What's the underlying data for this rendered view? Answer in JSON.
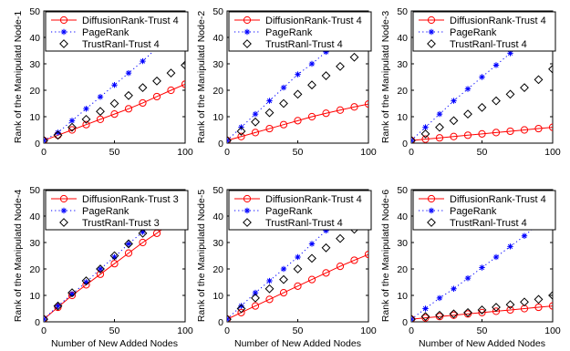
{
  "chart_data": [
    {
      "type": "line",
      "xlabel": "",
      "ylabel": "Rank of the Manipulatd Node-1",
      "xlim": [
        0,
        100
      ],
      "ylim": [
        0,
        50
      ],
      "xticks": [
        0,
        50,
        100
      ],
      "yticks": [
        0,
        10,
        20,
        30,
        40,
        50
      ],
      "legend_position": "top",
      "series": [
        {
          "name": "DiffusionRank-Trust 4",
          "color": "#ff0000",
          "marker": "circle",
          "line": "solid",
          "x": [
            0,
            10,
            20,
            30,
            40,
            50,
            60,
            70,
            80,
            90,
            100
          ],
          "y": [
            1,
            3,
            5,
            7,
            9,
            11,
            13,
            15.2,
            17.6,
            20,
            22.3
          ]
        },
        {
          "name": "PageRank",
          "color": "#0000ff",
          "marker": "star",
          "line": "dotted",
          "x": [
            0,
            10,
            20,
            30,
            40,
            50,
            60,
            70,
            80,
            90,
            100
          ],
          "y": [
            1,
            4,
            8.5,
            13,
            17.5,
            22,
            26.5,
            31,
            36,
            41,
            45
          ]
        },
        {
          "name": "TrustRanl-Trust 4",
          "color": "#000000",
          "marker": "diamond",
          "line": "none",
          "x": [
            0,
            10,
            20,
            30,
            40,
            50,
            60,
            70,
            80,
            90,
            100
          ],
          "y": [
            1,
            3,
            6,
            9,
            12,
            15,
            18,
            21,
            23.5,
            26.5,
            29.5
          ]
        }
      ]
    },
    {
      "type": "line",
      "xlabel": "",
      "ylabel": "Rank of the Manipulatd Node-2",
      "xlim": [
        0,
        100
      ],
      "ylim": [
        0,
        50
      ],
      "xticks": [
        0,
        50,
        100
      ],
      "yticks": [
        0,
        10,
        20,
        30,
        40,
        50
      ],
      "legend_position": "top",
      "series": [
        {
          "name": "DiffusionRank-Trust 4",
          "color": "#ff0000",
          "marker": "circle",
          "line": "solid",
          "x": [
            0,
            10,
            20,
            30,
            40,
            50,
            60,
            70,
            80,
            90,
            100
          ],
          "y": [
            1,
            2.5,
            4,
            5.5,
            7,
            8.5,
            10,
            11.3,
            12.5,
            13.7,
            14.8
          ]
        },
        {
          "name": "PageRank",
          "color": "#0000ff",
          "marker": "star",
          "line": "dotted",
          "x": [
            0,
            10,
            20,
            30,
            40,
            50,
            60,
            70,
            80,
            90,
            100
          ],
          "y": [
            1,
            6,
            11,
            16,
            21,
            26,
            30,
            34.5,
            39,
            43.5,
            48
          ]
        },
        {
          "name": "TrustRanl-Trust 4",
          "color": "#000000",
          "marker": "diamond",
          "line": "none",
          "x": [
            0,
            10,
            20,
            30,
            40,
            50,
            60,
            70,
            80,
            90,
            100
          ],
          "y": [
            1,
            4.5,
            8,
            11.5,
            15,
            18.5,
            22,
            25.5,
            29,
            32.5,
            36.5
          ]
        }
      ]
    },
    {
      "type": "line",
      "xlabel": "",
      "ylabel": "Rank of the Manipulatd Node-3",
      "xlim": [
        0,
        100
      ],
      "ylim": [
        0,
        50
      ],
      "xticks": [
        0,
        50,
        100
      ],
      "yticks": [
        0,
        10,
        20,
        30,
        40,
        50
      ],
      "legend_position": "top",
      "series": [
        {
          "name": "DiffusionRank-Trust 4",
          "color": "#ff0000",
          "marker": "circle",
          "line": "solid",
          "x": [
            0,
            10,
            20,
            30,
            40,
            50,
            60,
            70,
            80,
            90,
            100
          ],
          "y": [
            1,
            1.5,
            2,
            2.5,
            3,
            3.5,
            4,
            4.5,
            5,
            5.5,
            6
          ]
        },
        {
          "name": "PageRank",
          "color": "#0000ff",
          "marker": "star",
          "line": "dotted",
          "x": [
            0,
            10,
            20,
            30,
            40,
            50,
            60,
            70,
            80,
            90,
            100
          ],
          "y": [
            1,
            6,
            11,
            16,
            20.5,
            25,
            29.5,
            34,
            39,
            44,
            48.5
          ]
        },
        {
          "name": "TrustRanl-Trust 4",
          "color": "#000000",
          "marker": "diamond",
          "line": "none",
          "x": [
            0,
            10,
            20,
            30,
            40,
            50,
            60,
            70,
            80,
            90,
            100
          ],
          "y": [
            1,
            3.5,
            6,
            8.5,
            11,
            13.5,
            16,
            18.5,
            21,
            24,
            28
          ]
        }
      ]
    },
    {
      "type": "line",
      "xlabel": "Number of New Added Nodes",
      "ylabel": "Rank of the Manipulatd Node-4",
      "xlim": [
        0,
        100
      ],
      "ylim": [
        0,
        50
      ],
      "xticks": [
        0,
        50,
        100
      ],
      "yticks": [
        0,
        10,
        20,
        30,
        40,
        50
      ],
      "legend_position": "top",
      "series": [
        {
          "name": "DiffusionRank-Trust 3",
          "color": "#ff0000",
          "marker": "circle",
          "line": "solid",
          "x": [
            0,
            10,
            20,
            30,
            40,
            50,
            60,
            70,
            80,
            90,
            100
          ],
          "y": [
            1,
            5.5,
            10,
            14,
            18,
            22,
            26,
            30,
            33.5,
            37.5,
            41.5
          ]
        },
        {
          "name": "PageRank",
          "color": "#0000ff",
          "marker": "star",
          "line": "dotted",
          "x": [
            0,
            10,
            20,
            30,
            40,
            50,
            60,
            70,
            80,
            90,
            100
          ],
          "y": [
            1,
            6,
            10.5,
            15,
            20,
            24.5,
            29.5,
            34,
            38.5,
            43,
            48
          ]
        },
        {
          "name": "TrustRanl-Trust 3",
          "color": "#000000",
          "marker": "diamond",
          "line": "none",
          "x": [
            0,
            10,
            20,
            30,
            40,
            50,
            60,
            70,
            80,
            90,
            100
          ],
          "y": [
            1,
            6,
            11,
            15.5,
            20,
            25,
            29.5,
            33.5,
            38,
            42,
            46
          ]
        }
      ]
    },
    {
      "type": "line",
      "xlabel": "Number of New Added Nodes",
      "ylabel": "Rank of the Manipulatd Node-5",
      "xlim": [
        0,
        100
      ],
      "ylim": [
        0,
        50
      ],
      "xticks": [
        0,
        50,
        100
      ],
      "yticks": [
        0,
        10,
        20,
        30,
        40,
        50
      ],
      "legend_position": "top",
      "series": [
        {
          "name": "DiffusionRank-Trust 4",
          "color": "#ff0000",
          "marker": "circle",
          "line": "solid",
          "x": [
            0,
            10,
            20,
            30,
            40,
            50,
            60,
            70,
            80,
            90,
            100
          ],
          "y": [
            1,
            3.5,
            6,
            8.5,
            11,
            13.5,
            16,
            18.5,
            21,
            23.3,
            25.5
          ]
        },
        {
          "name": "PageRank",
          "color": "#0000ff",
          "marker": "star",
          "line": "dotted",
          "x": [
            0,
            10,
            20,
            30,
            40,
            50,
            60,
            70,
            80,
            90,
            100
          ],
          "y": [
            1,
            6,
            11,
            15.5,
            20,
            24.5,
            29.5,
            34.5,
            39,
            43,
            48
          ]
        },
        {
          "name": "TrustRanl-Trust 4",
          "color": "#000000",
          "marker": "diamond",
          "line": "none",
          "x": [
            0,
            10,
            20,
            30,
            40,
            50,
            60,
            70,
            80,
            90,
            100
          ],
          "y": [
            1,
            5,
            9,
            12.5,
            16,
            20,
            24,
            28,
            31.5,
            35,
            39
          ]
        }
      ]
    },
    {
      "type": "line",
      "xlabel": "Number of New Added Nodes",
      "ylabel": "Rank of the Manipulatd Node-6",
      "xlim": [
        0,
        100
      ],
      "ylim": [
        0,
        50
      ],
      "xticks": [
        0,
        50,
        100
      ],
      "yticks": [
        0,
        10,
        20,
        30,
        40,
        50
      ],
      "legend_position": "top",
      "series": [
        {
          "name": "DiffusionRank-Trust 4",
          "color": "#ff0000",
          "marker": "circle",
          "line": "solid",
          "x": [
            0,
            10,
            20,
            30,
            40,
            50,
            60,
            70,
            80,
            90,
            100
          ],
          "y": [
            1,
            1.5,
            2,
            2.5,
            3,
            3.5,
            4,
            4.5,
            5,
            5.5,
            6
          ]
        },
        {
          "name": "PageRank",
          "color": "#0000ff",
          "marker": "star",
          "line": "dotted",
          "x": [
            0,
            10,
            20,
            30,
            40,
            50,
            60,
            70,
            80,
            90,
            100
          ],
          "y": [
            1,
            5,
            9,
            12.5,
            16.5,
            20.5,
            24.5,
            28.5,
            32.5,
            37,
            41.5
          ]
        },
        {
          "name": "TrustRanl-Trust 4",
          "color": "#000000",
          "marker": "diamond",
          "line": "none",
          "x": [
            0,
            10,
            20,
            30,
            40,
            50,
            60,
            70,
            80,
            90,
            100
          ],
          "y": [
            1,
            2,
            2.5,
            3,
            3.5,
            4.5,
            5.5,
            6.5,
            7.5,
            8.5,
            10
          ]
        }
      ]
    }
  ]
}
